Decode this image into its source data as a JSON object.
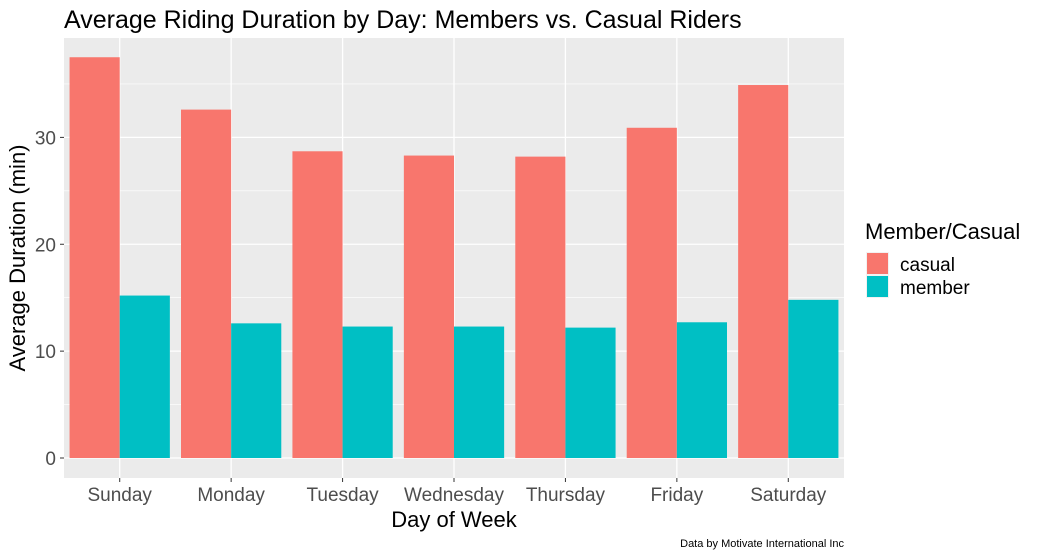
{
  "chart_data": {
    "type": "bar",
    "title": "Average Riding Duration by Day: Members vs. Casual Riders",
    "xlabel": "Day of Week",
    "ylabel": "Average Duration (min)",
    "caption": "Data by Motivate International Inc",
    "categories": [
      "Sunday",
      "Monday",
      "Tuesday",
      "Wednesday",
      "Thursday",
      "Friday",
      "Saturday"
    ],
    "series": [
      {
        "name": "casual",
        "color": "#F8766D",
        "values": [
          37.5,
          32.6,
          28.7,
          28.3,
          28.2,
          30.9,
          34.9
        ]
      },
      {
        "name": "member",
        "color": "#00BFC4",
        "values": [
          15.2,
          12.6,
          12.3,
          12.3,
          12.2,
          12.7,
          14.8
        ]
      }
    ],
    "ylim": [
      0,
      39.3
    ],
    "yticks": [
      0,
      10,
      20,
      30
    ],
    "grid": true,
    "legend": {
      "title": "Member/Casual",
      "position": "right"
    },
    "colors": {
      "panel": "#EBEBEB",
      "grid": "#FFFFFF",
      "tick_text": "#4D4D4D"
    }
  }
}
